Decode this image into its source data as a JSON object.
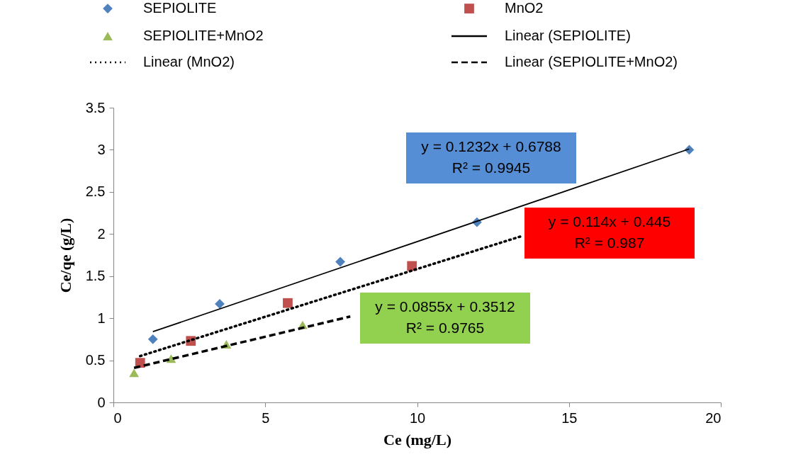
{
  "chart_data": {
    "type": "scatter",
    "xlabel": "Ce (mg/L)",
    "ylabel": "Ce/qe (g/L)",
    "xlim": [
      0,
      20
    ],
    "xticks": [
      0,
      5,
      10,
      15,
      20
    ],
    "ylim": [
      0,
      3.5
    ],
    "yticks": [
      0,
      0.5,
      1,
      1.5,
      2,
      2.5,
      3,
      3.5
    ],
    "grid": false,
    "legend": "top",
    "series": [
      {
        "name": "SEPIOLITE",
        "type": "scatter",
        "marker": "diamond",
        "color": "#4f81bd",
        "x": [
          1.3,
          3.5,
          7.47,
          11.97,
          18.96
        ],
        "values": [
          0.75,
          1.17,
          1.67,
          2.14,
          3.0
        ]
      },
      {
        "name": "MnO2",
        "type": "scatter",
        "marker": "square",
        "color": "#c0504d",
        "x": [
          0.88,
          2.55,
          5.74,
          9.83
        ],
        "values": [
          0.47,
          0.73,
          1.18,
          1.62
        ]
      },
      {
        "name": "SEPIOLITE+MnO2",
        "type": "scatter",
        "marker": "triangle",
        "color": "#9bbb59",
        "x": [
          0.68,
          1.9,
          3.72,
          6.23
        ],
        "values": [
          0.35,
          0.52,
          0.69,
          0.92
        ]
      },
      {
        "name": "Linear (SEPIOLITE)",
        "type": "line",
        "line_style": "solid",
        "color": "#000000",
        "x": [
          1.3,
          18.96
        ],
        "values": [
          0.84,
          3.01
        ]
      },
      {
        "name": "Linear (MnO2)",
        "type": "line",
        "line_style": "dotted",
        "color": "#000000",
        "x": [
          0.88,
          13.4
        ],
        "values": [
          0.55,
          1.97
        ]
      },
      {
        "name": "Linear (SEPIOLITE+MnO2)",
        "type": "line",
        "line_style": "dashed",
        "color": "#000000",
        "x": [
          0.68,
          7.8
        ],
        "values": [
          0.41,
          1.02
        ]
      }
    ],
    "annotations": [
      "y = 0.1232x + 0.6788\nR² = 0.9945",
      "y = 0.114x + 0.445\nR² = 0.987",
      "y = 0.0855x + 0.3512\nR² = 0.9765"
    ]
  }
}
